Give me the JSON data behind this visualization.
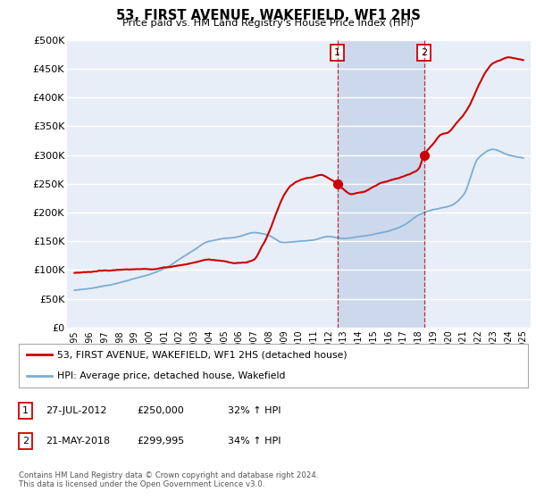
{
  "title": "53, FIRST AVENUE, WAKEFIELD, WF1 2HS",
  "subtitle": "Price paid vs. HM Land Registry's House Price Index (HPI)",
  "ylabel_ticks": [
    "£0",
    "£50K",
    "£100K",
    "£150K",
    "£200K",
    "£250K",
    "£300K",
    "£350K",
    "£400K",
    "£450K",
    "£500K"
  ],
  "ytick_values": [
    0,
    50000,
    100000,
    150000,
    200000,
    250000,
    300000,
    350000,
    400000,
    450000,
    500000
  ],
  "ylim": [
    0,
    500000
  ],
  "background_color": "#ffffff",
  "plot_bg_color": "#e8eef7",
  "grid_color": "#ffffff",
  "sale1_date_x": 2012.57,
  "sale1_price": 250000,
  "sale2_date_x": 2018.38,
  "sale2_price": 299995,
  "shade_color": "#ccd9ed",
  "red_line_color": "#cc0000",
  "blue_line_color": "#7aadd4",
  "legend_label1": "53, FIRST AVENUE, WAKEFIELD, WF1 2HS (detached house)",
  "legend_label2": "HPI: Average price, detached house, Wakefield",
  "table_rows": [
    {
      "num": "1",
      "date": "27-JUL-2012",
      "price": "£250,000",
      "hpi": "32% ↑ HPI"
    },
    {
      "num": "2",
      "date": "21-MAY-2018",
      "price": "£299,995",
      "hpi": "34% ↑ HPI"
    }
  ],
  "footnote": "Contains HM Land Registry data © Crown copyright and database right 2024.\nThis data is licensed under the Open Government Licence v3.0.",
  "xmin": 1994.5,
  "xmax": 2025.5
}
